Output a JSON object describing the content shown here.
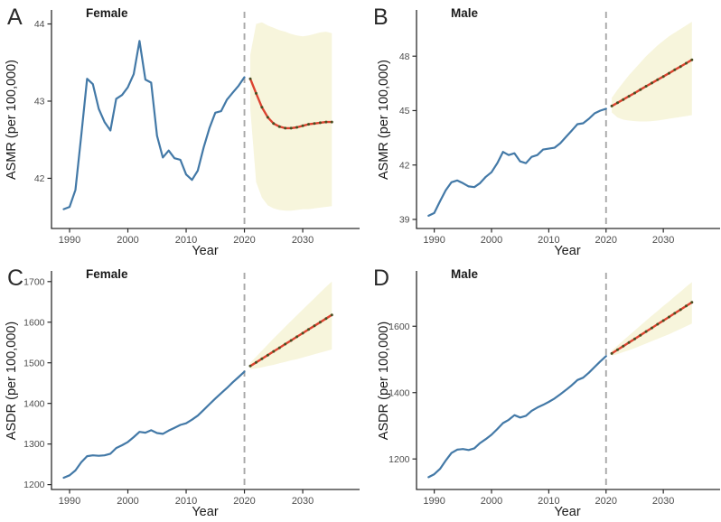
{
  "figure": {
    "panel_letters": [
      "A",
      "B",
      "C",
      "D"
    ],
    "x_axis_label": "Year",
    "forecast_start_year": 2020
  },
  "colors": {
    "observed_line": "#4379A7",
    "projected_line": "#DC4330",
    "projection_marker": "#4A4E20",
    "confidence_band": "#F7F5DC",
    "forecast_divider": "#A8A8A8",
    "axis": "#2B2B2B",
    "tick_text": "#4D4D4D",
    "label_text": "#1A1A1A"
  },
  "chart_data": [
    {
      "id": "A",
      "type": "line",
      "title": "Female",
      "ylabel": "ASMR (per 100,000)",
      "xlabel": "Year",
      "xlim": [
        1986.9,
        2039.6
      ],
      "ylim": [
        41.35,
        44.17
      ],
      "xticks": [
        1990,
        2000,
        2010,
        2020,
        2030
      ],
      "yticks": [
        42,
        43,
        44
      ],
      "forecast_divider_x": 2020,
      "series": [
        {
          "name": "observed",
          "start_year": 1989,
          "values": [
            41.6,
            41.63,
            41.85,
            42.55,
            43.29,
            43.22,
            42.9,
            42.73,
            42.62,
            43.03,
            43.08,
            43.18,
            43.35,
            43.78,
            43.28,
            43.24,
            42.55,
            42.27,
            42.36,
            42.26,
            42.24,
            42.05,
            41.98,
            42.1,
            42.4,
            42.65,
            42.85,
            42.87,
            43.02,
            43.11,
            43.2,
            43.31
          ]
        },
        {
          "name": "projected",
          "start_year": 2021,
          "values": [
            43.29,
            43.1,
            42.92,
            42.79,
            42.71,
            42.67,
            42.65,
            42.65,
            42.66,
            42.68,
            42.7,
            42.71,
            42.72,
            42.73,
            42.73
          ]
        }
      ],
      "band": {
        "name": "projection uncertainty band",
        "start_year": 2021,
        "lower": [
          42.9,
          41.95,
          41.75,
          41.65,
          41.61,
          41.59,
          41.58,
          41.58,
          41.59,
          41.6,
          41.6,
          41.61,
          41.62,
          41.63,
          41.64
        ],
        "upper": [
          43.6,
          44.0,
          44.02,
          43.98,
          43.95,
          43.92,
          43.9,
          43.87,
          43.85,
          43.84,
          43.85,
          43.87,
          43.89,
          43.9,
          43.88
        ]
      }
    },
    {
      "id": "B",
      "type": "line",
      "title": "Male",
      "ylabel": "ASMR (per 100,000)",
      "xlabel": "Year",
      "xlim": [
        1986.9,
        2039.6
      ],
      "ylim": [
        38.5,
        50.5
      ],
      "xticks": [
        1990,
        2000,
        2010,
        2020,
        2030
      ],
      "yticks": [
        39,
        42,
        45,
        48
      ],
      "forecast_divider_x": 2020,
      "series": [
        {
          "name": "observed",
          "start_year": 1989,
          "values": [
            39.2,
            39.35,
            40.0,
            40.6,
            41.05,
            41.15,
            41.0,
            40.82,
            40.78,
            41.0,
            41.35,
            41.6,
            42.1,
            42.72,
            42.55,
            42.65,
            42.2,
            42.1,
            42.45,
            42.55,
            42.85,
            42.9,
            42.95,
            43.2,
            43.55,
            43.9,
            44.25,
            44.3,
            44.55,
            44.85,
            45.0,
            45.1
          ]
        },
        {
          "name": "projected",
          "start_year": 2021,
          "values": [
            45.25,
            45.43,
            45.61,
            45.79,
            45.97,
            46.16,
            46.34,
            46.52,
            46.7,
            46.88,
            47.06,
            47.25,
            47.43,
            47.61,
            47.8
          ]
        }
      ],
      "band": {
        "name": "projection uncertainty band",
        "start_year": 2021,
        "lower": [
          44.9,
          44.62,
          44.5,
          44.45,
          44.42,
          44.4,
          44.4,
          44.42,
          44.45,
          44.5,
          44.55,
          44.6,
          44.65,
          44.7,
          44.75
        ],
        "upper": [
          45.7,
          46.15,
          46.55,
          46.95,
          47.3,
          47.65,
          48.0,
          48.3,
          48.6,
          48.85,
          49.1,
          49.3,
          49.5,
          49.7,
          49.9
        ]
      }
    },
    {
      "id": "C",
      "type": "line",
      "title": "Female",
      "ylabel": "ASDR (per 100,000)",
      "xlabel": "Year",
      "xlim": [
        1986.9,
        2039.6
      ],
      "ylim": [
        1188,
        1724
      ],
      "xticks": [
        1990,
        2000,
        2010,
        2020,
        2030
      ],
      "yticks": [
        1200,
        1300,
        1400,
        1500,
        1600,
        1700
      ],
      "forecast_divider_x": 2020,
      "series": [
        {
          "name": "observed",
          "start_year": 1989,
          "values": [
            1217,
            1223,
            1235,
            1255,
            1270,
            1272,
            1271,
            1272,
            1276,
            1290,
            1297,
            1305,
            1317,
            1330,
            1328,
            1334,
            1327,
            1325,
            1333,
            1340,
            1347,
            1351,
            1360,
            1370,
            1384,
            1398,
            1412,
            1425,
            1438,
            1452,
            1465,
            1478
          ]
        },
        {
          "name": "projected",
          "start_year": 2021,
          "values": [
            1492,
            1501,
            1510,
            1519,
            1528,
            1537,
            1546,
            1555,
            1564,
            1573,
            1582,
            1591,
            1600,
            1609,
            1618
          ]
        }
      ],
      "band": {
        "name": "projection uncertainty band",
        "start_year": 2021,
        "lower": [
          1484,
          1486,
          1489,
          1492,
          1495,
          1499,
          1502,
          1506,
          1509,
          1513,
          1517,
          1521,
          1525,
          1529,
          1533
        ],
        "upper": [
          1500,
          1515,
          1530,
          1545,
          1560,
          1574,
          1589,
          1603,
          1617,
          1631,
          1645,
          1659,
          1673,
          1687,
          1700
        ]
      }
    },
    {
      "id": "D",
      "type": "line",
      "title": "Male",
      "ylabel": "ASDR (per 100,000)",
      "xlabel": "Year",
      "xlim": [
        1986.9,
        2039.6
      ],
      "ylim": [
        1108,
        1764
      ],
      "xticks": [
        1990,
        2000,
        2010,
        2020,
        2030
      ],
      "yticks": [
        1200,
        1400,
        1600
      ],
      "forecast_divider_x": 2020,
      "series": [
        {
          "name": "observed",
          "start_year": 1989,
          "values": [
            1145,
            1154,
            1170,
            1195,
            1218,
            1228,
            1230,
            1227,
            1232,
            1248,
            1260,
            1273,
            1290,
            1308,
            1318,
            1332,
            1325,
            1330,
            1345,
            1355,
            1363,
            1372,
            1382,
            1395,
            1408,
            1422,
            1438,
            1445,
            1460,
            1477,
            1494,
            1510
          ]
        },
        {
          "name": "projected",
          "start_year": 2021,
          "values": [
            1518,
            1529,
            1540,
            1551,
            1562,
            1573,
            1584,
            1595,
            1606,
            1617,
            1628,
            1639,
            1650,
            1661,
            1672
          ]
        }
      ],
      "band": {
        "name": "projection uncertainty band",
        "start_year": 2021,
        "lower": [
          1511,
          1516,
          1522,
          1528,
          1534,
          1541,
          1548,
          1555,
          1562,
          1569,
          1576,
          1584,
          1592,
          1600,
          1608
        ],
        "upper": [
          1527,
          1542,
          1557,
          1572,
          1587,
          1602,
          1617,
          1632,
          1646,
          1661,
          1675,
          1690,
          1704,
          1719,
          1733
        ]
      }
    }
  ]
}
